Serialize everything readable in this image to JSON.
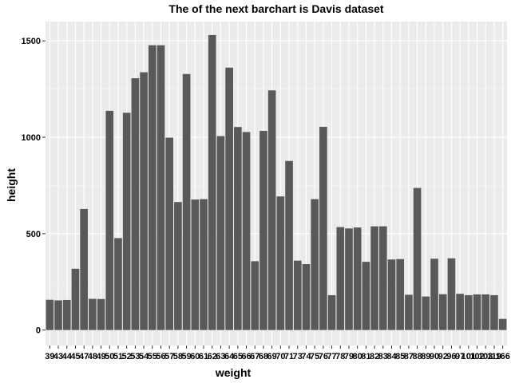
{
  "chart_data": {
    "type": "bar",
    "title": "The of the next barchart is Davis dataset",
    "xlabel": "weight",
    "ylabel": "height",
    "ylim": [
      -80,
      1600
    ],
    "yticks": [
      0,
      500,
      1000,
      1500
    ],
    "grid": true,
    "legend": "none",
    "categories": [
      "39",
      "43",
      "44",
      "45",
      "47",
      "48",
      "49",
      "50",
      "51",
      "52",
      "53",
      "54",
      "55",
      "56",
      "57",
      "58",
      "59",
      "60",
      "61",
      "62",
      "63",
      "64",
      "65",
      "66",
      "67",
      "68",
      "69",
      "70",
      "71",
      "73",
      "74",
      "75",
      "76",
      "77",
      "78",
      "79",
      "80",
      "81",
      "82",
      "83",
      "84",
      "85",
      "87",
      "88",
      "89",
      "90",
      "92",
      "96",
      "97",
      "101",
      "102",
      "103",
      "119",
      "166"
    ],
    "values": [
      157,
      154,
      156,
      318,
      628,
      162,
      161,
      1137,
      477,
      1127,
      1306,
      1337,
      1477,
      1477,
      998,
      664,
      1328,
      677,
      679,
      1530,
      1006,
      1361,
      1053,
      1027,
      357,
      1033,
      1243,
      693,
      877,
      360,
      342,
      679,
      1054,
      181,
      534,
      527,
      532,
      354,
      538,
      538,
      366,
      368,
      183,
      737,
      174,
      370,
      186,
      372,
      188,
      181,
      185,
      185,
      181,
      58
    ]
  },
  "colors": {
    "panel": "#ebebeb",
    "grid_major": "#ffffff",
    "grid_minor": "#f5f5f5",
    "bar": "#595959",
    "text": "#000000"
  }
}
